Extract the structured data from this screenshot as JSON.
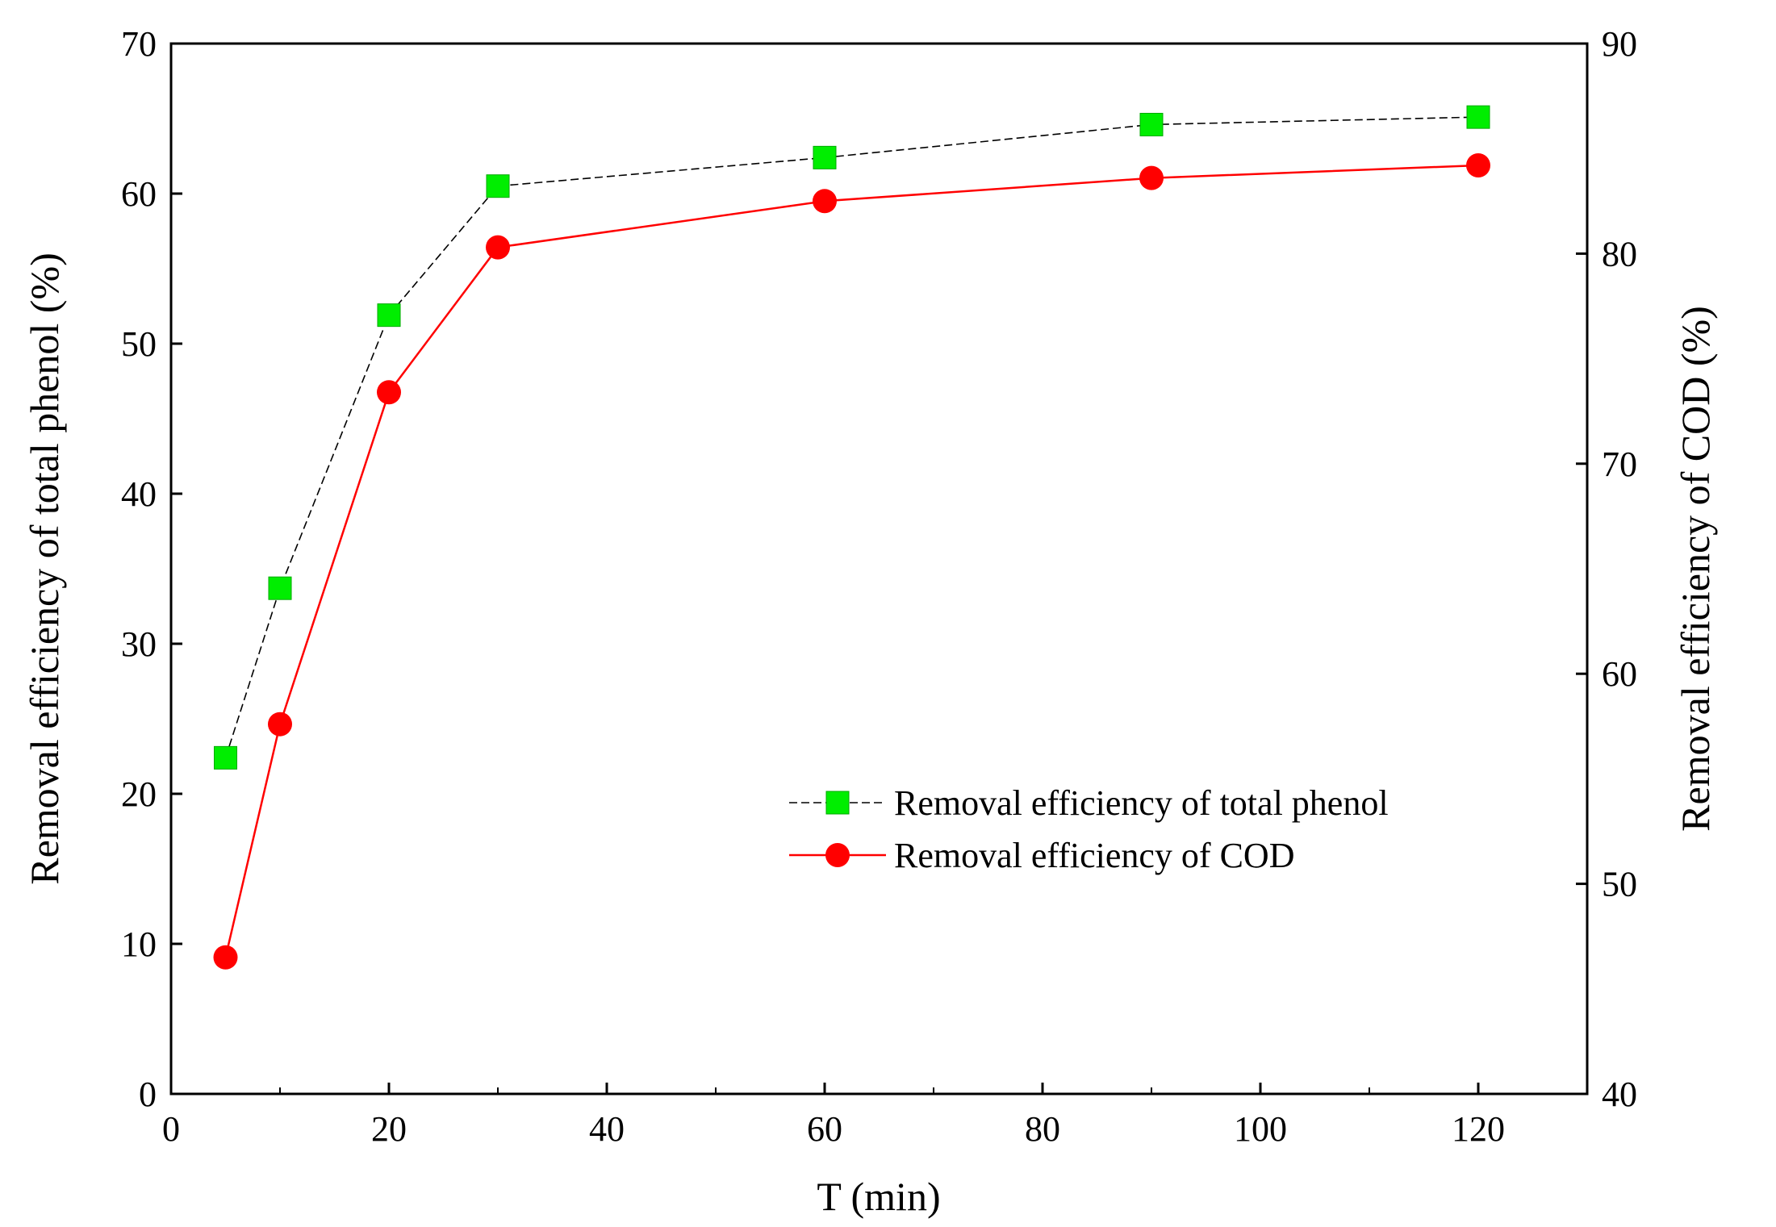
{
  "chart_data": {
    "type": "line",
    "title": "",
    "xlabel": "T (min)",
    "ylabel_left": "Removal efficiency of total phenol (%)",
    "ylabel_right": "Removal efficiency of COD (%)",
    "xlim": [
      0,
      130
    ],
    "ylim_left": [
      0,
      70
    ],
    "ylim_right": [
      40,
      90
    ],
    "x_ticks": [
      0,
      20,
      40,
      60,
      80,
      100,
      120
    ],
    "x_minor_ticks": [
      10,
      30,
      50,
      70,
      90,
      110,
      130
    ],
    "y_left_ticks": [
      0,
      10,
      20,
      30,
      40,
      50,
      60,
      70
    ],
    "y_right_ticks": [
      40,
      50,
      60,
      70,
      80,
      90
    ],
    "grid": false,
    "legend_position": "center-right",
    "series": [
      {
        "name": "Removal efficiency of total phenol",
        "axis": "left",
        "color": "#00ee00",
        "line_color": "#000000",
        "line_style": "dashed",
        "marker": "square",
        "x": [
          5,
          10,
          20,
          30,
          60,
          90,
          120
        ],
        "values": [
          22.4,
          33.7,
          51.9,
          60.5,
          62.4,
          64.6,
          65.1
        ]
      },
      {
        "name": "Removal efficiency of COD",
        "axis": "right",
        "color": "#ff0000",
        "line_color": "#ff0000",
        "line_style": "solid",
        "marker": "circle",
        "x": [
          5,
          10,
          20,
          30,
          60,
          90,
          120
        ],
        "values": [
          46.5,
          57.6,
          73.4,
          80.3,
          82.5,
          83.6,
          84.2
        ]
      }
    ]
  }
}
